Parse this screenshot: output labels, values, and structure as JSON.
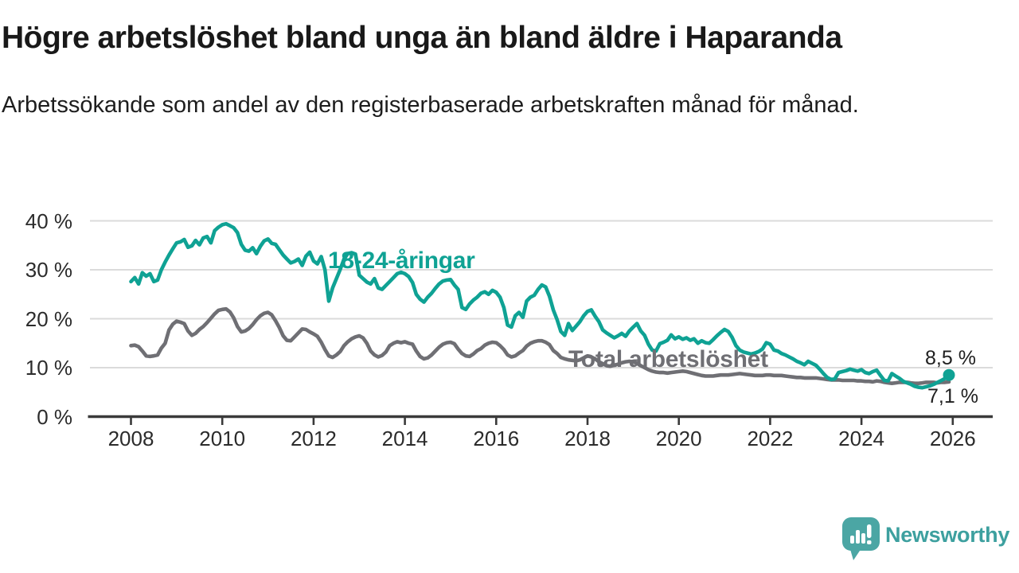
{
  "header": {
    "title": "Högre arbetslöshet bland unga än bland äldre i Haparanda",
    "subtitle": "Arbetssökande som andel av den registerbaserade arbetskraften månad för månad."
  },
  "chart_data": {
    "type": "line",
    "title": "Högre arbetslöshet bland unga än bland äldre i Haparanda",
    "subtitle": "Arbetssökande som andel av den registerbaserade arbetskraften månad för månad.",
    "x_start": "2008-01",
    "x_end": "2025-12",
    "x_frequency": "monthly",
    "x_tick_labels": [
      "2008",
      "2010",
      "2012",
      "2014",
      "2016",
      "2018",
      "2020",
      "2022",
      "2024",
      "2026"
    ],
    "y_tick_labels": [
      "40 %",
      "30 %",
      "20 %",
      "10 %",
      "0 %"
    ],
    "ylim": [
      0,
      42
    ],
    "grid": "horizontal",
    "grid_color": "#dbdbdb",
    "axis_color": "#3a3a3a",
    "series": [
      {
        "name": "18-24-åringar",
        "label": "18-24-åringar",
        "color": "#0fa294",
        "end_label": "8,5 %",
        "end_value": 8.5,
        "values": [
          27.6,
          28.4,
          27.1,
          29.4,
          28.7,
          29.2,
          27.6,
          27.9,
          30.0,
          31.6,
          33.0,
          34.3,
          35.5,
          35.7,
          36.2,
          34.6,
          34.9,
          36.0,
          35.1,
          36.5,
          36.8,
          35.5,
          38.0,
          38.7,
          39.2,
          39.4,
          39.0,
          38.6,
          37.6,
          35.2,
          34.0,
          33.8,
          34.5,
          33.3,
          34.8,
          35.9,
          36.3,
          35.4,
          35.2,
          34.1,
          33.0,
          32.2,
          31.4,
          31.7,
          32.2,
          30.9,
          32.8,
          33.6,
          31.8,
          31.2,
          32.7,
          30.0,
          23.6,
          26.3,
          28.2,
          30.1,
          32.2,
          33.3,
          33.5,
          33.2,
          28.9,
          28.2,
          27.5,
          27.1,
          28.2,
          26.3,
          26.0,
          26.8,
          27.6,
          28.4,
          29.2,
          29.5,
          29.2,
          28.6,
          27.4,
          25.0,
          24.0,
          23.4,
          24.4,
          25.2,
          26.2,
          27.1,
          27.7,
          27.9,
          28.0,
          26.9,
          26.0,
          22.3,
          21.9,
          23.0,
          23.8,
          24.4,
          25.2,
          25.5,
          25.0,
          25.8,
          25.4,
          24.4,
          22.3,
          18.7,
          18.3,
          20.6,
          21.3,
          20.3,
          23.6,
          24.4,
          24.8,
          26.0,
          26.9,
          26.5,
          24.6,
          21.8,
          19.8,
          17.4,
          16.6,
          19.0,
          17.6,
          18.5,
          19.4,
          20.6,
          21.5,
          21.8,
          20.5,
          19.4,
          17.7,
          17.1,
          16.6,
          16.1,
          16.5,
          17.0,
          16.4,
          17.5,
          18.3,
          19.0,
          17.5,
          16.6,
          14.8,
          13.6,
          13.4,
          14.9,
          15.2,
          15.6,
          16.7,
          15.9,
          16.3,
          15.8,
          16.1,
          15.6,
          15.9,
          15.0,
          15.5,
          15.1,
          15.0,
          15.7,
          16.5,
          17.2,
          17.8,
          17.4,
          16.2,
          14.5,
          13.6,
          13.2,
          13.0,
          12.8,
          13.0,
          13.3,
          13.8,
          15.1,
          14.8,
          13.6,
          13.4,
          12.9,
          12.6,
          12.2,
          11.8,
          11.3,
          11.0,
          10.6,
          11.3,
          10.9,
          10.5,
          9.7,
          8.8,
          8.0,
          7.6,
          7.7,
          9.0,
          9.2,
          9.4,
          9.7,
          9.5,
          9.3,
          9.6,
          9.0,
          8.8,
          9.2,
          9.5,
          8.4,
          7.4,
          7.3,
          8.8,
          8.3,
          7.8,
          7.2,
          6.9,
          6.6,
          6.2,
          6.0,
          5.9,
          6.1,
          6.3,
          6.6,
          7.0,
          7.4,
          7.8,
          8.5
        ]
      },
      {
        "name": "Total arbetslöshet",
        "label": "Total arbetslöshet",
        "color": "#6f6f74",
        "end_label": "7,1 %",
        "end_value": 7.1,
        "values": [
          14.5,
          14.6,
          14.3,
          13.4,
          12.4,
          12.3,
          12.4,
          12.6,
          14.0,
          15.0,
          17.7,
          18.9,
          19.5,
          19.3,
          19.0,
          17.5,
          16.6,
          17.0,
          17.8,
          18.4,
          19.2,
          20.1,
          21.0,
          21.7,
          21.9,
          22.0,
          21.4,
          20.2,
          18.4,
          17.3,
          17.5,
          18.0,
          18.8,
          19.8,
          20.6,
          21.1,
          21.3,
          20.8,
          19.6,
          18.2,
          16.5,
          15.6,
          15.5,
          16.3,
          17.1,
          17.9,
          17.8,
          17.3,
          16.9,
          16.4,
          15.2,
          13.7,
          12.4,
          12.1,
          12.6,
          13.3,
          14.5,
          15.3,
          15.9,
          16.3,
          16.5,
          16.1,
          15.0,
          13.4,
          12.6,
          12.2,
          12.5,
          13.2,
          14.5,
          15.0,
          15.3,
          15.1,
          15.3,
          15.0,
          14.8,
          13.4,
          12.3,
          11.8,
          12.0,
          12.6,
          13.4,
          14.2,
          14.8,
          15.1,
          15.2,
          14.9,
          13.8,
          12.9,
          12.4,
          12.3,
          12.8,
          13.5,
          13.9,
          14.6,
          15.0,
          15.2,
          15.1,
          14.5,
          13.7,
          12.6,
          12.2,
          12.4,
          13.0,
          13.5,
          14.4,
          15.0,
          15.3,
          15.5,
          15.5,
          15.2,
          14.7,
          13.5,
          12.9,
          12.1,
          11.8,
          11.6,
          11.5,
          11.4,
          11.6,
          12.0,
          12.4,
          12.2,
          11.8,
          11.2,
          10.8,
          10.4,
          10.3,
          10.5,
          10.7,
          11.0,
          11.2,
          11.3,
          11.2,
          10.9,
          10.4,
          10.0,
          9.6,
          9.3,
          9.1,
          9.0,
          9.0,
          8.9,
          9.0,
          9.1,
          9.2,
          9.3,
          9.2,
          9.0,
          8.8,
          8.6,
          8.4,
          8.3,
          8.3,
          8.3,
          8.4,
          8.5,
          8.5,
          8.5,
          8.6,
          8.7,
          8.8,
          8.7,
          8.6,
          8.5,
          8.4,
          8.4,
          8.4,
          8.5,
          8.5,
          8.4,
          8.4,
          8.4,
          8.3,
          8.2,
          8.1,
          8.0,
          8.0,
          7.9,
          7.9,
          7.9,
          7.9,
          7.8,
          7.7,
          7.6,
          7.5,
          7.5,
          7.5,
          7.4,
          7.4,
          7.4,
          7.4,
          7.3,
          7.3,
          7.2,
          7.2,
          7.1,
          7.3,
          7.2,
          7.0,
          6.9,
          6.8,
          6.9,
          7.0,
          7.0,
          7.0,
          6.9,
          6.8,
          6.8,
          6.9,
          7.0,
          7.0,
          7.0,
          6.9,
          7.0,
          7.0,
          7.1
        ]
      }
    ]
  },
  "branding": {
    "logo_text": "Newsworthy",
    "logo_icon": "newsworthy-speech-bubble-bar-chart-icon",
    "logo_color": "#3da09f",
    "logo_icon_color": "#4ba6a4"
  }
}
